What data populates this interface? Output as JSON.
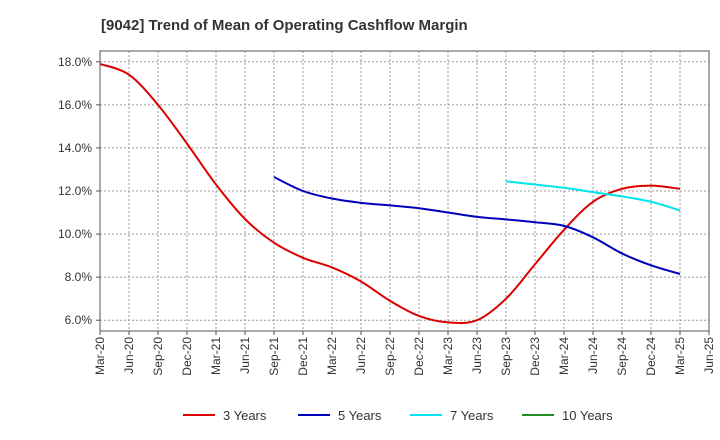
{
  "chart_data": {
    "type": "line",
    "title": "[9042]  Trend of Mean of Operating Cashflow Margin",
    "xlabel": "",
    "ylabel": "",
    "ylim": [
      5.5,
      18.5
    ],
    "yticks": [
      6.0,
      8.0,
      10.0,
      12.0,
      14.0,
      16.0,
      18.0
    ],
    "ytick_labels": [
      "6.0%",
      "8.0%",
      "10.0%",
      "12.0%",
      "14.0%",
      "16.0%",
      "18.0%"
    ],
    "x_tick_labels": [
      "Mar-20",
      "Jun-20",
      "Sep-20",
      "Dec-20",
      "Mar-21",
      "Jun-21",
      "Sep-21",
      "Dec-21",
      "Mar-22",
      "Jun-22",
      "Sep-22",
      "Dec-22",
      "Mar-23",
      "Jun-23",
      "Sep-23",
      "Dec-23",
      "Mar-24",
      "Jun-24",
      "Sep-24",
      "Dec-24",
      "Mar-25",
      "Jun-25"
    ],
    "grid": true,
    "legend_position": "bottom",
    "series": [
      {
        "name": "3 Years",
        "color": "#dd0000",
        "start": "Mar-20",
        "values": [
          17.9,
          17.4,
          16.0,
          14.2,
          12.3,
          10.7,
          9.6,
          8.9,
          8.45,
          7.8,
          6.9,
          6.2,
          5.9,
          6.0,
          7.0,
          8.6,
          10.2,
          11.5,
          12.1,
          12.25,
          12.1
        ]
      },
      {
        "name": "5 Years",
        "color": "#0000bb",
        "start": "Sep-21",
        "values": [
          12.65,
          12.0,
          11.65,
          11.45,
          11.33,
          11.2,
          11.0,
          10.8,
          10.68,
          10.55,
          10.38,
          9.85,
          9.1,
          8.55,
          8.15
        ]
      },
      {
        "name": "7 Years",
        "color": "#00e5ee",
        "start": "Sep-23",
        "values": [
          12.45,
          12.3,
          12.15,
          11.95,
          11.75,
          11.5,
          11.1
        ]
      },
      {
        "name": "10 Years",
        "color": "#228b22",
        "start": "Sep-23",
        "values": []
      }
    ]
  }
}
